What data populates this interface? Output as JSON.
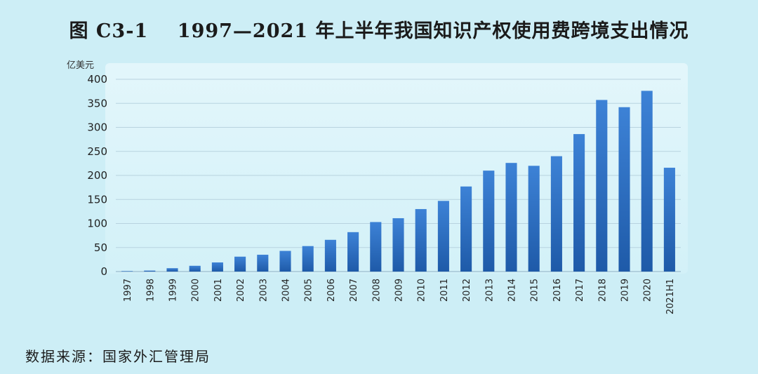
{
  "title": "图 C3-1    1997—2021 年上半年我国知识产权使用费跨境支出情况",
  "source": "数据来源：国家外汇管理局",
  "chart_data": {
    "type": "bar",
    "title": "图 C3-1    1997—2021 年上半年我国知识产权使用费跨境支出情况",
    "ylabel": "亿美元",
    "xlabel": "",
    "ylim": [
      0,
      400
    ],
    "yticks": [
      0,
      50,
      100,
      150,
      200,
      250,
      300,
      350,
      400
    ],
    "grid": true,
    "categories": [
      "1997",
      "1998",
      "1999",
      "2000",
      "2001",
      "2002",
      "2003",
      "2004",
      "2005",
      "2006",
      "2007",
      "2008",
      "2009",
      "2010",
      "2011",
      "2012",
      "2013",
      "2014",
      "2015",
      "2016",
      "2017",
      "2018",
      "2019",
      "2020",
      "2021H1"
    ],
    "values": [
      1,
      2,
      7,
      12,
      19,
      31,
      35,
      43,
      53,
      66,
      82,
      103,
      111,
      130,
      147,
      177,
      210,
      226,
      220,
      240,
      286,
      357,
      342,
      376,
      216
    ],
    "bar_color": "#2f6fc1"
  }
}
